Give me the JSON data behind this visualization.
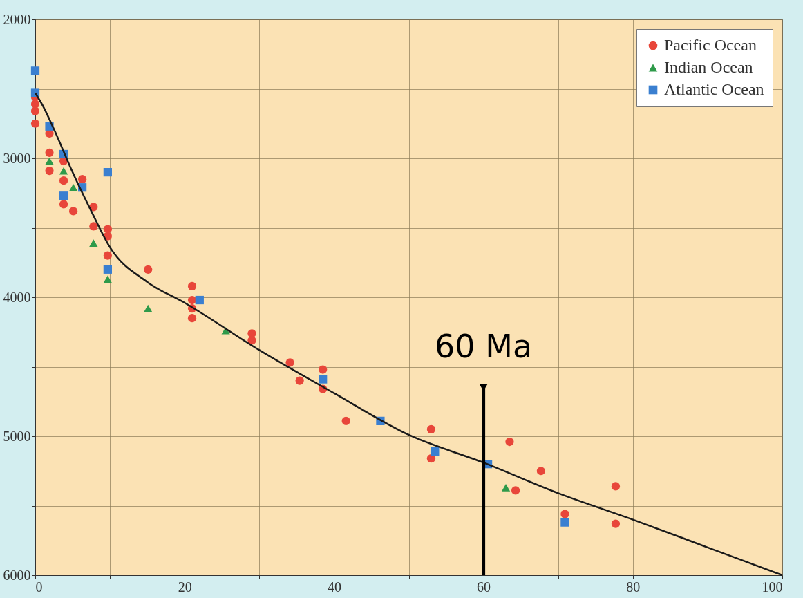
{
  "chart_data": {
    "type": "scatter",
    "xlim": [
      0,
      100
    ],
    "xticks": [
      0,
      {
        "value": 10,
        "label": null
      },
      20,
      {
        "value": 30,
        "label": null
      },
      40,
      {
        "value": 50,
        "label": null
      },
      60,
      {
        "value": 70,
        "label": null
      },
      80,
      {
        "value": 90,
        "label": null
      },
      100
    ],
    "ylim": [
      6000,
      2000
    ],
    "yticks": [
      2000,
      {
        "value": 2500,
        "label": null
      },
      3000,
      {
        "value": 3500,
        "label": null
      },
      4000,
      {
        "value": 4500,
        "label": null
      },
      5000,
      {
        "value": 5500,
        "label": null
      },
      6000
    ],
    "grid": true,
    "legend": "top right",
    "annotations": [
      {
        "text": "60 Ma",
        "x": 60,
        "y": 4650
      }
    ],
    "series": [
      {
        "name": "Pacific Ocean",
        "color": "#e8463a",
        "marker": "circle",
        "x": [
          0,
          0,
          0,
          0,
          1.9,
          1.9,
          1.9,
          3.8,
          3.8,
          3.8,
          5.1,
          6.3,
          7.8,
          7.8,
          9.7,
          9.7,
          9.7,
          15.1,
          21,
          21,
          21,
          21,
          29,
          29,
          34.1,
          35.4,
          38.5,
          38.5,
          41.6,
          53,
          53,
          63.5,
          64.3,
          67.7,
          70.9,
          77.7,
          77.7
        ],
        "values": [
          2560,
          2610,
          2660,
          2750,
          2820,
          2960,
          3090,
          3020,
          3160,
          3330,
          3380,
          3150,
          3350,
          3490,
          3510,
          3560,
          3700,
          3800,
          3920,
          4020,
          4080,
          4150,
          4260,
          4310,
          4470,
          4600,
          4520,
          4660,
          4890,
          4950,
          5160,
          5040,
          5390,
          5250,
          5560,
          5360,
          5630
        ]
      },
      {
        "name": "Indian Ocean",
        "color": "#2e9a4a",
        "marker": "triangle",
        "x": [
          1.9,
          3.8,
          5.1,
          7.8,
          9.7,
          15.1,
          25.5,
          63
        ],
        "values": [
          3020,
          3090,
          3210,
          3610,
          3870,
          4080,
          4240,
          5370
        ]
      },
      {
        "name": "Atlantic Ocean",
        "color": "#3a7fd0",
        "marker": "square",
        "x": [
          0,
          0,
          1.9,
          3.8,
          3.8,
          6.3,
          9.7,
          9.7,
          22,
          38.5,
          46.2,
          53.5,
          60.6,
          70.9
        ],
        "values": [
          2370,
          2530,
          2770,
          2970,
          3270,
          3210,
          3100,
          3800,
          4020,
          4590,
          4890,
          5110,
          5200,
          5620
        ]
      },
      {
        "type": "line",
        "color": "#1a1a1a",
        "line_style": "solid",
        "x": [
          0,
          1,
          2.5,
          5,
          7.5,
          10,
          15,
          20,
          30,
          40,
          50,
          60,
          70,
          80,
          90,
          100
        ],
        "values": [
          2530,
          2620,
          2790,
          3100,
          3380,
          3640,
          3890,
          4040,
          4380,
          4690,
          4990,
          5190,
          5410,
          5600,
          5800,
          6000
        ]
      }
    ]
  }
}
